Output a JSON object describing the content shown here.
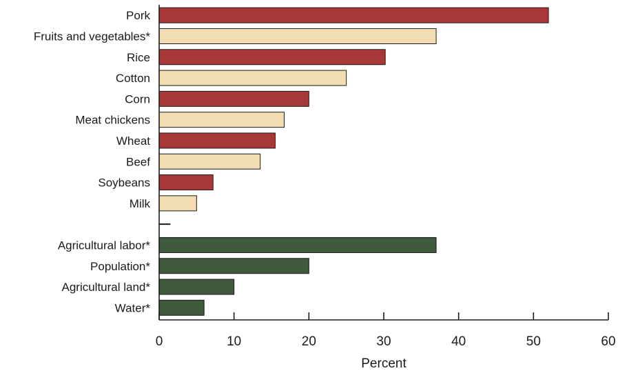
{
  "chart_data": {
    "type": "bar",
    "orientation": "horizontal",
    "title": "",
    "xlabel": "Percent",
    "ylabel": "",
    "xlim": [
      0,
      60
    ],
    "xticks": [
      0,
      10,
      20,
      30,
      40,
      50,
      60
    ],
    "grid": false,
    "legend": "none",
    "colors": {
      "red": "#a83838",
      "beige": "#f2dcb3",
      "green": "#3f5a3d",
      "outline": "#1a1a1a"
    },
    "categories": [
      "Pork",
      "Fruits and vegetables*",
      "Rice",
      "Cotton",
      "Corn",
      "Meat chickens",
      "Wheat",
      "Beef",
      "Soybeans",
      "Milk",
      "",
      "Agricultural labor*",
      "Population*",
      "Agricultural land*",
      "Water*"
    ],
    "values": [
      52,
      37,
      30.2,
      25,
      20,
      16.7,
      15.5,
      13.5,
      7.2,
      5,
      1.5,
      37,
      20,
      10,
      6
    ],
    "bar_colors": [
      "red",
      "beige",
      "red",
      "beige",
      "red",
      "beige",
      "red",
      "beige",
      "red",
      "beige",
      "line",
      "green",
      "green",
      "green",
      "green"
    ]
  }
}
